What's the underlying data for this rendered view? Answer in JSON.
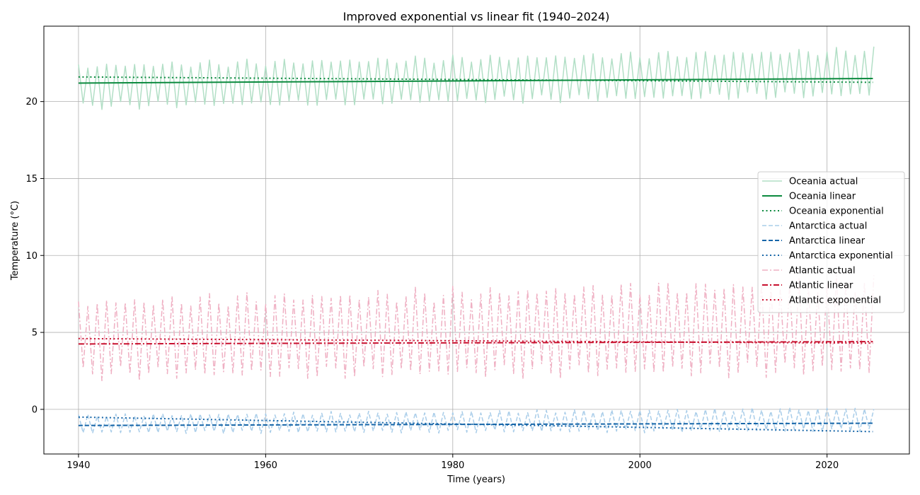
{
  "chart_data": {
    "type": "line",
    "title": "Improved exponential vs linear fit (1940–2024)",
    "xlabel": "Time (years)",
    "ylabel": "Temperature (°C)",
    "xlim": [
      1936.3,
      2028.8
    ],
    "ylim": [
      -2.9,
      24.9
    ],
    "xticks": [
      1940,
      1960,
      1980,
      2000,
      2020
    ],
    "yticks": [
      0,
      5,
      10,
      15,
      20
    ],
    "grid": true,
    "legend_position": "center-right",
    "series": [
      {
        "name": "Oceania actual",
        "kind": "seasonal",
        "color": "#b2dfc6",
        "dash": "solid",
        "start": 1940,
        "end": 2024.9,
        "step": 0.5,
        "base_start": 21.0,
        "base_end": 21.9,
        "amp_start": 1.3,
        "amp_end": 1.4
      },
      {
        "name": "Oceania linear",
        "kind": "trend",
        "color": "#0b8a3e",
        "dash": "solid",
        "x": [
          1940,
          2024.9
        ],
        "values": [
          21.2,
          21.5
        ]
      },
      {
        "name": "Oceania exponential",
        "kind": "trend",
        "color": "#0b8a3e",
        "dash": "dotted",
        "x": [
          1940,
          2024.9
        ],
        "values": [
          21.6,
          21.25
        ]
      },
      {
        "name": "Antarctica actual",
        "kind": "seasonal",
        "color": "#a9cde9",
        "dash": "dashed",
        "start": 1940,
        "end": 2024.9,
        "step": 0.5,
        "base_start": -0.95,
        "base_end": -0.65,
        "amp_start": 0.55,
        "amp_end": 0.7
      },
      {
        "name": "Antarctica linear",
        "kind": "trend",
        "color": "#1565a8",
        "dash": "dashed",
        "x": [
          1940,
          2024.9
        ],
        "values": [
          -1.05,
          -0.9
        ]
      },
      {
        "name": "Antarctica exponential",
        "kind": "trend",
        "color": "#1565a8",
        "dash": "dotted",
        "x": [
          1940,
          2024.9
        ],
        "values": [
          -0.5,
          -1.45
        ]
      },
      {
        "name": "Atlantic actual",
        "kind": "seasonal",
        "color": "#efb0c3",
        "dash": "dashdot",
        "start": 1940,
        "end": 2024.9,
        "step": 0.5,
        "base_start": 4.6,
        "base_end": 5.4,
        "amp_start": 2.3,
        "amp_end": 2.8
      },
      {
        "name": "Atlantic linear",
        "kind": "trend",
        "color": "#c8102e",
        "dash": "dashdot",
        "x": [
          1940,
          2024.9
        ],
        "values": [
          4.25,
          4.4
        ]
      },
      {
        "name": "Atlantic exponential",
        "kind": "trend",
        "color": "#c8102e",
        "dash": "dotted",
        "x": [
          1940,
          2024.9
        ],
        "values": [
          4.6,
          4.3
        ]
      }
    ]
  }
}
